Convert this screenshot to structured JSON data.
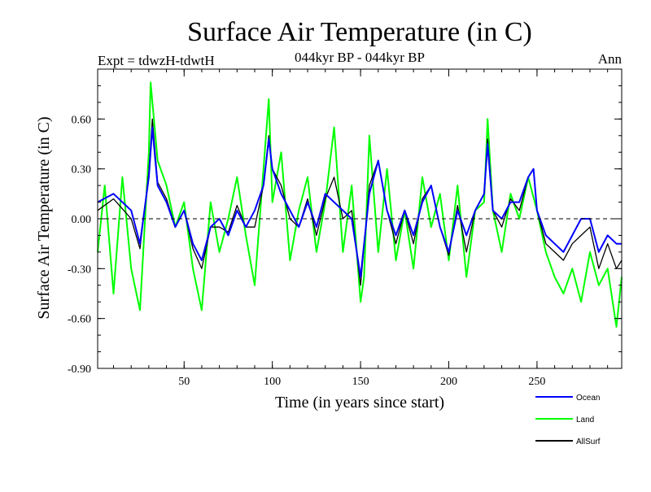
{
  "chart_data": {
    "type": "line",
    "title": "Surface Air Temperature (in C)",
    "subtitle": "044kyr BP - 044kyr BP",
    "left_label": "Expt = tdwzH-tdwtH",
    "right_label": "Ann",
    "xlabel": "Time (in years since start)",
    "ylabel": "Surface Air Temperature (in C)",
    "xlim": [
      1,
      298
    ],
    "ylim": [
      -0.9,
      0.9
    ],
    "xticks": [
      50,
      100,
      150,
      200,
      250
    ],
    "xtick_labels": [
      "50",
      "100",
      "150",
      "200",
      "250"
    ],
    "yticks": [
      -0.9,
      -0.6,
      -0.3,
      0.0,
      0.3,
      0.6
    ],
    "ytick_labels": [
      "-0.90",
      "-0.60",
      "-0.30",
      "0.00",
      "0.30",
      "0.60"
    ],
    "zero_line": "dashed",
    "grid": false,
    "legend_position": "bottom-right",
    "series": [
      {
        "name": "Ocean",
        "color": "#0000ff",
        "x": [
          1,
          10,
          20,
          25,
          30,
          32,
          35,
          40,
          45,
          50,
          55,
          60,
          65,
          70,
          75,
          80,
          85,
          90,
          95,
          98,
          100,
          105,
          110,
          115,
          120,
          125,
          130,
          135,
          140,
          145,
          150,
          155,
          160,
          165,
          170,
          175,
          180,
          185,
          190,
          195,
          200,
          205,
          210,
          215,
          220,
          222,
          225,
          230,
          235,
          240,
          245,
          248,
          250,
          255,
          260,
          265,
          270,
          275,
          280,
          285,
          290,
          295,
          298
        ],
        "y": [
          0.1,
          0.15,
          0.05,
          -0.15,
          0.25,
          0.55,
          0.2,
          0.1,
          -0.05,
          0.05,
          -0.15,
          -0.25,
          -0.05,
          0.0,
          -0.1,
          0.05,
          -0.05,
          0.05,
          0.2,
          0.48,
          0.3,
          0.15,
          0.05,
          -0.05,
          0.1,
          -0.05,
          0.15,
          0.1,
          0.05,
          0.0,
          -0.35,
          0.15,
          0.35,
          0.05,
          -0.1,
          0.05,
          -0.1,
          0.1,
          0.2,
          -0.05,
          -0.2,
          0.05,
          -0.1,
          0.05,
          0.15,
          0.45,
          0.05,
          0.0,
          0.1,
          0.1,
          0.25,
          0.3,
          0.05,
          -0.1,
          -0.15,
          -0.2,
          -0.1,
          0.0,
          0.0,
          -0.2,
          -0.1,
          -0.15,
          -0.15
        ]
      },
      {
        "name": "Land",
        "color": "#00ff00",
        "x": [
          1,
          5,
          10,
          15,
          20,
          25,
          30,
          31,
          35,
          40,
          45,
          50,
          55,
          60,
          65,
          70,
          75,
          80,
          85,
          90,
          95,
          98,
          100,
          105,
          110,
          115,
          120,
          125,
          130,
          135,
          140,
          145,
          150,
          152,
          155,
          160,
          165,
          170,
          175,
          180,
          185,
          190,
          195,
          200,
          205,
          210,
          215,
          220,
          222,
          225,
          230,
          235,
          240,
          245,
          250,
          255,
          260,
          265,
          270,
          275,
          280,
          285,
          290,
          295,
          298
        ],
        "y": [
          -0.2,
          0.2,
          -0.45,
          0.25,
          -0.3,
          -0.55,
          0.4,
          0.82,
          0.35,
          0.2,
          -0.05,
          0.1,
          -0.3,
          -0.55,
          0.1,
          -0.2,
          0.0,
          0.25,
          -0.1,
          -0.4,
          0.3,
          0.72,
          0.1,
          0.4,
          -0.25,
          0.05,
          0.25,
          -0.2,
          0.1,
          0.55,
          -0.2,
          0.2,
          -0.5,
          -0.35,
          0.5,
          -0.2,
          0.3,
          -0.25,
          0.05,
          -0.3,
          0.25,
          -0.05,
          0.15,
          -0.25,
          0.2,
          -0.35,
          0.05,
          0.1,
          0.6,
          0.05,
          -0.2,
          0.15,
          0.0,
          0.25,
          0.05,
          -0.2,
          -0.35,
          -0.45,
          -0.3,
          -0.5,
          -0.2,
          -0.4,
          -0.3,
          -0.65,
          -0.35
        ]
      },
      {
        "name": "AllSurf",
        "color": "#000000",
        "x": [
          1,
          10,
          20,
          25,
          30,
          32,
          35,
          40,
          45,
          50,
          55,
          60,
          65,
          70,
          75,
          80,
          85,
          90,
          95,
          98,
          100,
          105,
          110,
          115,
          120,
          125,
          130,
          135,
          140,
          145,
          150,
          155,
          160,
          165,
          170,
          175,
          180,
          185,
          190,
          195,
          200,
          205,
          210,
          215,
          220,
          222,
          225,
          230,
          235,
          240,
          245,
          248,
          250,
          255,
          260,
          265,
          270,
          275,
          280,
          285,
          290,
          295,
          298
        ],
        "y": [
          0.05,
          0.12,
          0.0,
          -0.18,
          0.28,
          0.6,
          0.22,
          0.12,
          -0.05,
          0.05,
          -0.18,
          -0.3,
          -0.05,
          -0.05,
          -0.08,
          0.08,
          -0.05,
          -0.05,
          0.2,
          0.5,
          0.3,
          0.2,
          0.0,
          -0.05,
          0.12,
          -0.1,
          0.12,
          0.25,
          0.0,
          0.05,
          -0.4,
          0.2,
          0.35,
          0.05,
          -0.15,
          0.05,
          -0.15,
          0.12,
          0.2,
          -0.05,
          -0.22,
          0.08,
          -0.2,
          0.05,
          0.15,
          0.48,
          0.05,
          -0.05,
          0.12,
          0.05,
          0.25,
          0.3,
          0.05,
          -0.15,
          -0.2,
          -0.25,
          -0.15,
          -0.1,
          -0.05,
          -0.3,
          -0.15,
          -0.3,
          -0.25
        ]
      }
    ]
  }
}
